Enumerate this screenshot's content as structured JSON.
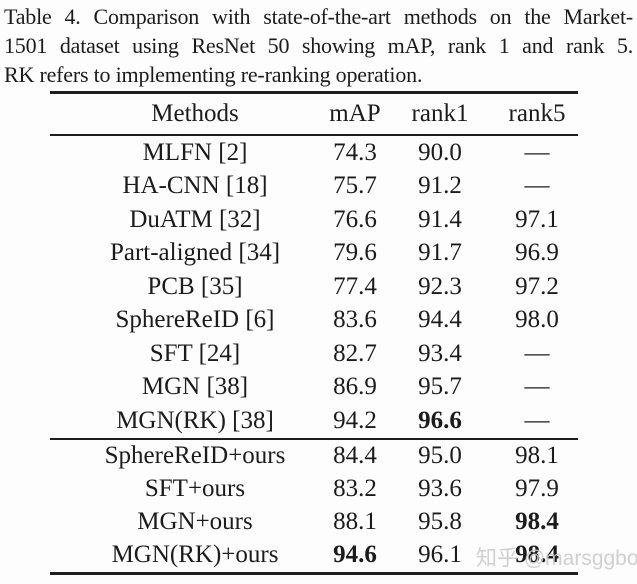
{
  "caption": {
    "lines": [
      "Table 4. Comparison with state-of-the-art methods on the Market-",
      "1501 dataset using ResNet 50 showing mAP, rank 1 and rank 5.",
      "RK refers to implementing re-ranking operation."
    ]
  },
  "table": {
    "headers": [
      "Methods",
      "mAP",
      "rank1",
      "rank5"
    ],
    "block1": [
      {
        "method": "MLFN [2]",
        "map": "74.3",
        "rank1": "90.0",
        "rank5": "—"
      },
      {
        "method": "HA-CNN [18]",
        "map": "75.7",
        "rank1": "91.2",
        "rank5": "—"
      },
      {
        "method": "DuATM [32]",
        "map": "76.6",
        "rank1": "91.4",
        "rank5": "97.1"
      },
      {
        "method": "Part-aligned [34]",
        "map": "79.6",
        "rank1": "91.7",
        "rank5": "96.9"
      },
      {
        "method": "PCB [35]",
        "map": "77.4",
        "rank1": "92.3",
        "rank5": "97.2"
      },
      {
        "method": "SphereReID [6]",
        "map": "83.6",
        "rank1": "94.4",
        "rank5": "98.0"
      },
      {
        "method": "SFT [24]",
        "map": "82.7",
        "rank1": "93.4",
        "rank5": "—"
      },
      {
        "method": "MGN [38]",
        "map": "86.9",
        "rank1": "95.7",
        "rank5": "—"
      },
      {
        "method": "MGN(RK) [38]",
        "map": "94.2",
        "rank1": "96.6",
        "rank5": "—"
      }
    ],
    "block2": [
      {
        "method": "SphereReID+ours",
        "map": "84.4",
        "rank1": "95.0",
        "rank5": "98.1"
      },
      {
        "method": "SFT+ours",
        "map": "83.2",
        "rank1": "93.6",
        "rank5": "97.9"
      },
      {
        "method": "MGN+ours",
        "map": "88.1",
        "rank1": "95.8",
        "rank5": "98.4"
      },
      {
        "method": "MGN(RK)+ours",
        "map": "94.6",
        "rank1": "96.1",
        "rank5": "98.4"
      }
    ]
  },
  "watermark": {
    "text": "知乎 @marsggbo",
    "color": "#c9c9c9"
  },
  "colors": {
    "text": "#1b1b1b",
    "rule": "#1e1e1e",
    "background": "#fdfdfd"
  }
}
